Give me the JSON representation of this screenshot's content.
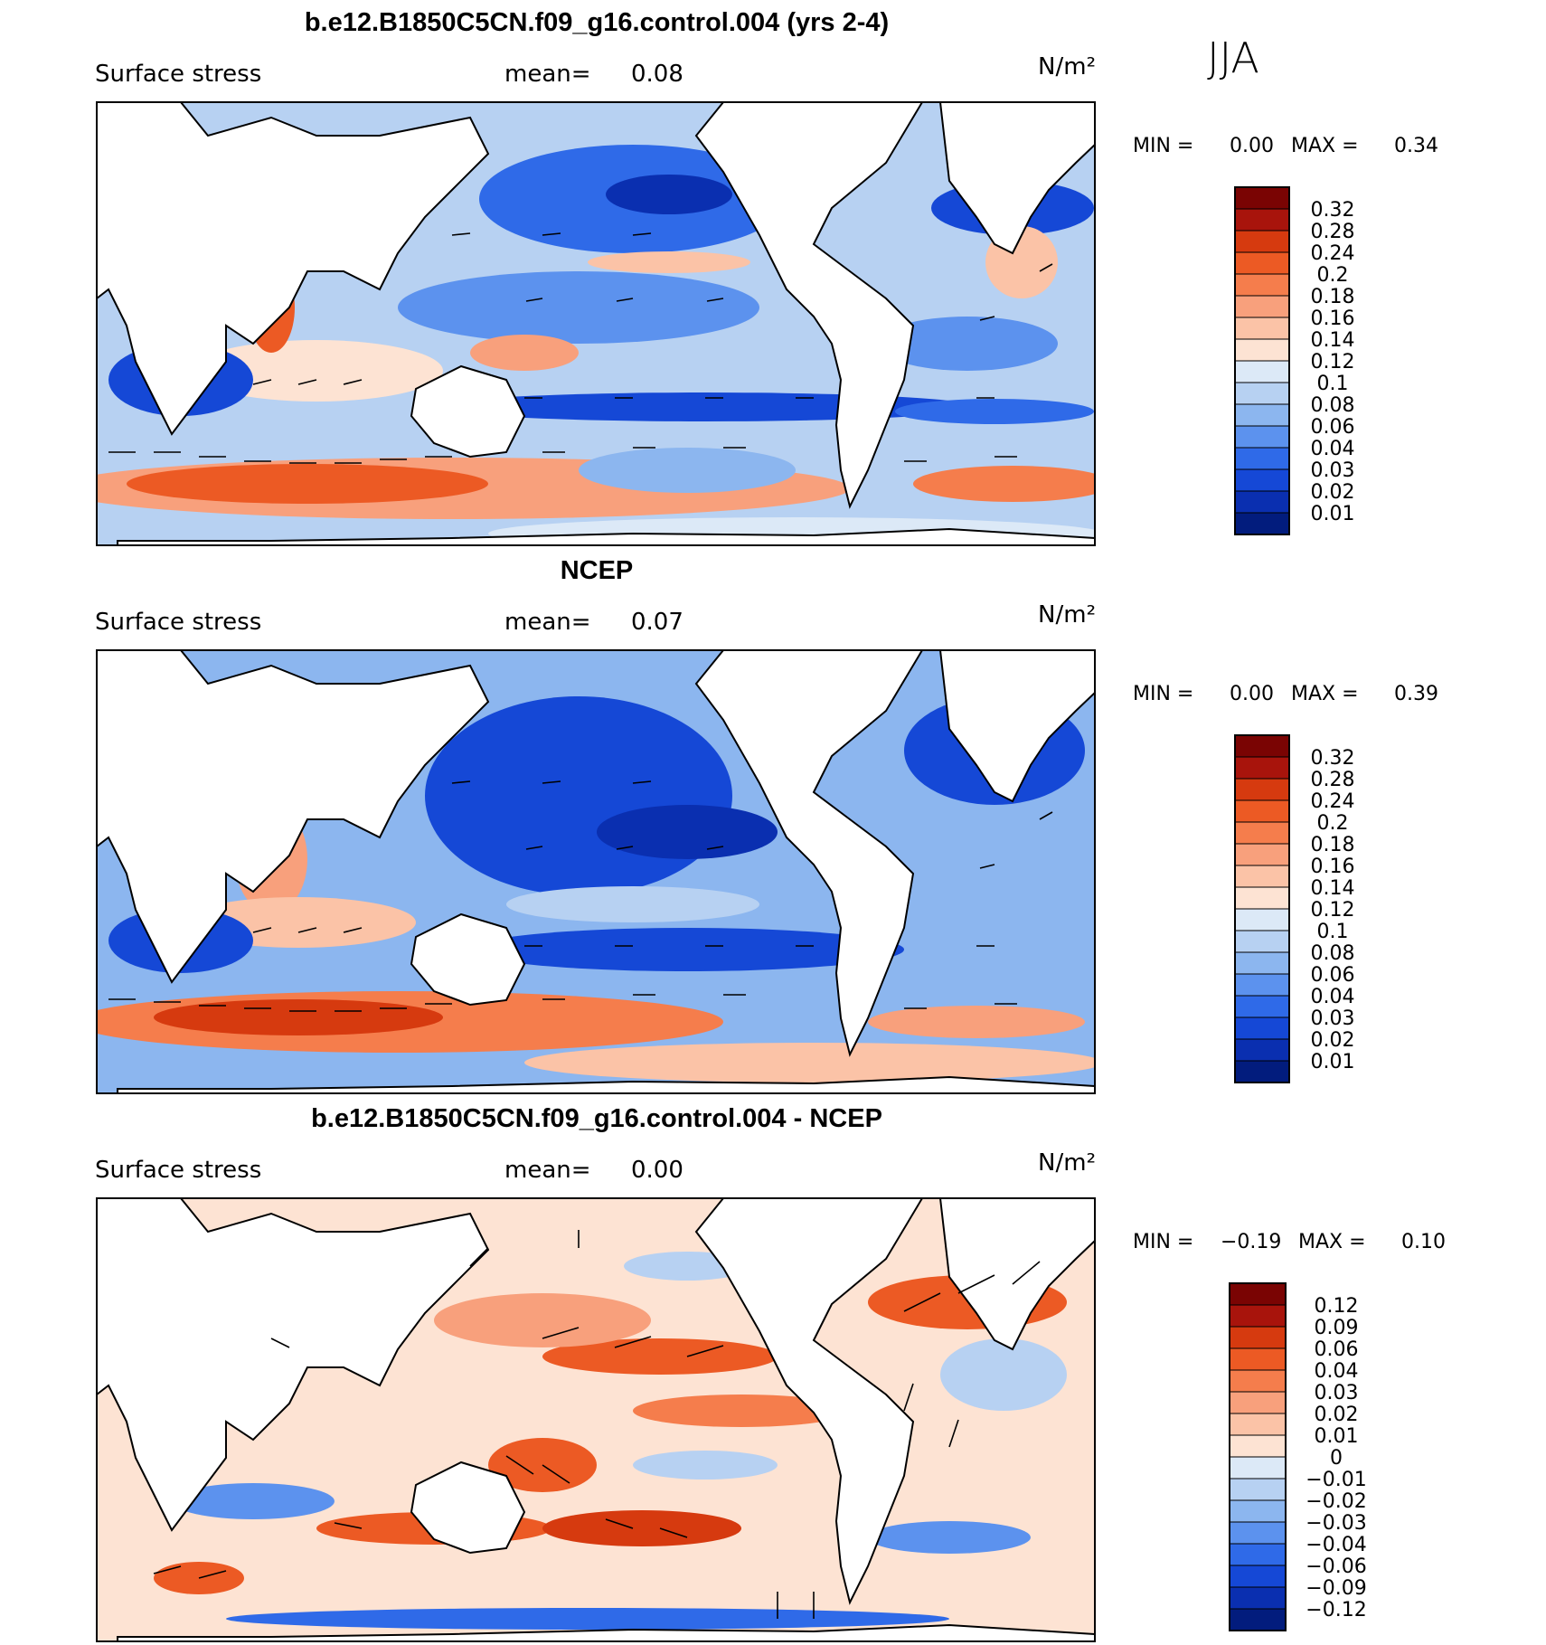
{
  "season_label": "JJA",
  "panels": [
    {
      "title": "b.e12.B1850C5CN.f09_g16.control.004 (yrs 2-4)",
      "variable": "Surface stress",
      "mean_label": "mean=",
      "mean_value": "0.08",
      "units": "N/m²",
      "stats": {
        "min_label": "MIN =",
        "min_value": "0.00",
        "max_label": "MAX =",
        "max_value": "0.34"
      },
      "colorbar_labels": [
        "0.32",
        "0.28",
        "0.24",
        "0.2",
        "0.18",
        "0.16",
        "0.14",
        "0.12",
        "0.1",
        "0.08",
        "0.06",
        "0.04",
        "0.03",
        "0.02",
        "0.01"
      ],
      "colorbar_colors": [
        "#7a0403",
        "#a8140c",
        "#d63a0f",
        "#ec5a24",
        "#f57d4c",
        "#f8a07c",
        "#fbc3a7",
        "#fde3d3",
        "#dce9f7",
        "#b7d1f2",
        "#8cb6ef",
        "#5c92ee",
        "#2f6ae8",
        "#1548d6",
        "#0a2fb0",
        "#021c7d"
      ]
    },
    {
      "title": "NCEP",
      "variable": "Surface stress",
      "mean_label": "mean=",
      "mean_value": "0.07",
      "units": "N/m²",
      "stats": {
        "min_label": "MIN =",
        "min_value": "0.00",
        "max_label": "MAX =",
        "max_value": "0.39"
      },
      "colorbar_labels": [
        "0.32",
        "0.28",
        "0.24",
        "0.2",
        "0.18",
        "0.16",
        "0.14",
        "0.12",
        "0.1",
        "0.08",
        "0.06",
        "0.04",
        "0.03",
        "0.02",
        "0.01"
      ],
      "colorbar_colors": [
        "#7a0403",
        "#a8140c",
        "#d63a0f",
        "#ec5a24",
        "#f57d4c",
        "#f8a07c",
        "#fbc3a7",
        "#fde3d3",
        "#dce9f7",
        "#b7d1f2",
        "#8cb6ef",
        "#5c92ee",
        "#2f6ae8",
        "#1548d6",
        "#0a2fb0",
        "#021c7d"
      ]
    },
    {
      "title": "b.e12.B1850C5CN.f09_g16.control.004 - NCEP",
      "variable": "Surface stress",
      "mean_label": "mean=",
      "mean_value": "0.00",
      "units": "N/m²",
      "stats": {
        "min_label": "MIN =",
        "min_value": "−0.19",
        "max_label": "MAX =",
        "max_value": "0.10"
      },
      "colorbar_labels": [
        "0.12",
        "0.09",
        "0.06",
        "0.04",
        "0.03",
        "0.02",
        "0.01",
        "0",
        "−0.01",
        "−0.02",
        "−0.03",
        "−0.04",
        "−0.06",
        "−0.09",
        "−0.12"
      ],
      "colorbar_colors": [
        "#7a0403",
        "#a8140c",
        "#d63a0f",
        "#ec5a24",
        "#f57d4c",
        "#f8a07c",
        "#fbc3a7",
        "#fde3d3",
        "#dce9f7",
        "#b7d1f2",
        "#8cb6ef",
        "#5c92ee",
        "#2f6ae8",
        "#1548d6",
        "#0a2fb0",
        "#021c7d"
      ]
    }
  ],
  "chart_data": [
    {
      "type": "heatmap",
      "title": "b.e12.B1850C5CN.f09_g16.control.004 (yrs 2-4)",
      "variable": "Surface stress",
      "units": "N/m²",
      "mean": 0.08,
      "min": 0.0,
      "max": 0.34,
      "season": "JJA",
      "colorbar_levels": [
        0.01,
        0.02,
        0.03,
        0.04,
        0.06,
        0.08,
        0.1,
        0.12,
        0.14,
        0.16,
        0.18,
        0.2,
        0.24,
        0.28,
        0.32
      ]
    },
    {
      "type": "heatmap",
      "title": "NCEP",
      "variable": "Surface stress",
      "units": "N/m²",
      "mean": 0.07,
      "min": 0.0,
      "max": 0.39,
      "season": "JJA",
      "colorbar_levels": [
        0.01,
        0.02,
        0.03,
        0.04,
        0.06,
        0.08,
        0.1,
        0.12,
        0.14,
        0.16,
        0.18,
        0.2,
        0.24,
        0.28,
        0.32
      ]
    },
    {
      "type": "heatmap",
      "title": "b.e12.B1850C5CN.f09_g16.control.004 - NCEP",
      "variable": "Surface stress",
      "units": "N/m²",
      "mean": 0.0,
      "min": -0.19,
      "max": 0.1,
      "season": "JJA",
      "colorbar_levels": [
        -0.12,
        -0.09,
        -0.06,
        -0.04,
        -0.03,
        -0.02,
        -0.01,
        0,
        0.01,
        0.02,
        0.03,
        0.04,
        0.06,
        0.09,
        0.12
      ]
    }
  ]
}
